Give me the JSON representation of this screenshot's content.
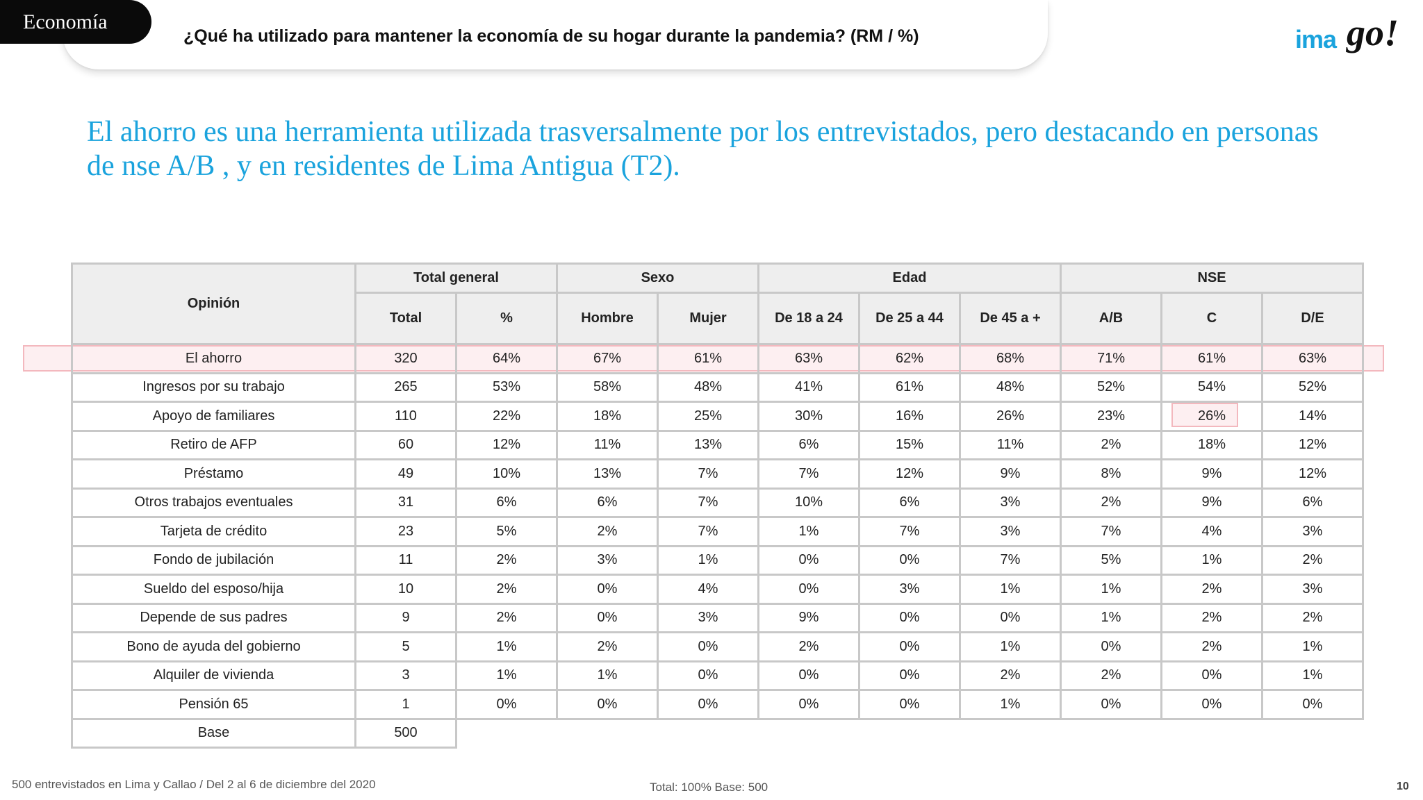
{
  "header": {
    "section": "Economía",
    "question": "¿Qué ha utilizado para mantener la economía de su hogar durante la pandemia?  (RM  /  %)",
    "logo_text_a": "ima",
    "logo_text_b": "go!"
  },
  "headline": "El ahorro es una herramienta utilizada trasversalmente por los entrevistados, pero destacando en personas de nse A/B , y en residentes de Lima Antigua (T2).",
  "table": {
    "opinion_header": "Opinión",
    "groups": [
      "Total general",
      "Sexo",
      "Edad",
      "NSE"
    ],
    "columns": [
      "Total",
      "%",
      "Hombre",
      "Mujer",
      "De 18 a 24",
      "De 25 a 44",
      "De 45 a +",
      "A/B",
      "C",
      "D/E"
    ],
    "rows": [
      {
        "label": "El ahorro",
        "values": [
          "320",
          "64%",
          "67%",
          "61%",
          "63%",
          "62%",
          "68%",
          "71%",
          "61%",
          "63%"
        ]
      },
      {
        "label": "Ingresos por su trabajo",
        "values": [
          "265",
          "53%",
          "58%",
          "48%",
          "41%",
          "61%",
          "48%",
          "52%",
          "54%",
          "52%"
        ]
      },
      {
        "label": "Apoyo de familiares",
        "values": [
          "110",
          "22%",
          "18%",
          "25%",
          "30%",
          "16%",
          "26%",
          "23%",
          "26%",
          "14%"
        ]
      },
      {
        "label": "Retiro de AFP",
        "values": [
          "60",
          "12%",
          "11%",
          "13%",
          "6%",
          "15%",
          "11%",
          "2%",
          "18%",
          "12%"
        ]
      },
      {
        "label": "Préstamo",
        "values": [
          "49",
          "10%",
          "13%",
          "7%",
          "7%",
          "12%",
          "9%",
          "8%",
          "9%",
          "12%"
        ]
      },
      {
        "label": "Otros trabajos eventuales",
        "values": [
          "31",
          "6%",
          "6%",
          "7%",
          "10%",
          "6%",
          "3%",
          "2%",
          "9%",
          "6%"
        ]
      },
      {
        "label": "Tarjeta de crédito",
        "values": [
          "23",
          "5%",
          "2%",
          "7%",
          "1%",
          "7%",
          "3%",
          "7%",
          "4%",
          "3%"
        ]
      },
      {
        "label": "Fondo de jubilación",
        "values": [
          "11",
          "2%",
          "3%",
          "1%",
          "0%",
          "0%",
          "7%",
          "5%",
          "1%",
          "2%"
        ]
      },
      {
        "label": "Sueldo del esposo/hija",
        "values": [
          "10",
          "2%",
          "0%",
          "4%",
          "0%",
          "3%",
          "1%",
          "1%",
          "2%",
          "3%"
        ]
      },
      {
        "label": "Depende de sus padres",
        "values": [
          "9",
          "2%",
          "0%",
          "3%",
          "9%",
          "0%",
          "0%",
          "1%",
          "2%",
          "2%"
        ]
      },
      {
        "label": "Bono de ayuda del gobierno",
        "values": [
          "5",
          "1%",
          "2%",
          "0%",
          "2%",
          "0%",
          "1%",
          "0%",
          "2%",
          "1%"
        ]
      },
      {
        "label": "Alquiler de vivienda",
        "values": [
          "3",
          "1%",
          "1%",
          "0%",
          "0%",
          "0%",
          "2%",
          "2%",
          "0%",
          "1%"
        ]
      },
      {
        "label": "Pensión 65",
        "values": [
          "1",
          "0%",
          "0%",
          "0%",
          "0%",
          "0%",
          "1%",
          "0%",
          "0%",
          "0%"
        ]
      }
    ],
    "base_label": "Base",
    "base_value": "500"
  },
  "footer": {
    "sample": "500 entrevistados en Lima y Callao   /   Del 2 al 6 de diciembre del 2020",
    "totals": "Total: 100%   Base: 500",
    "page": "10"
  }
}
